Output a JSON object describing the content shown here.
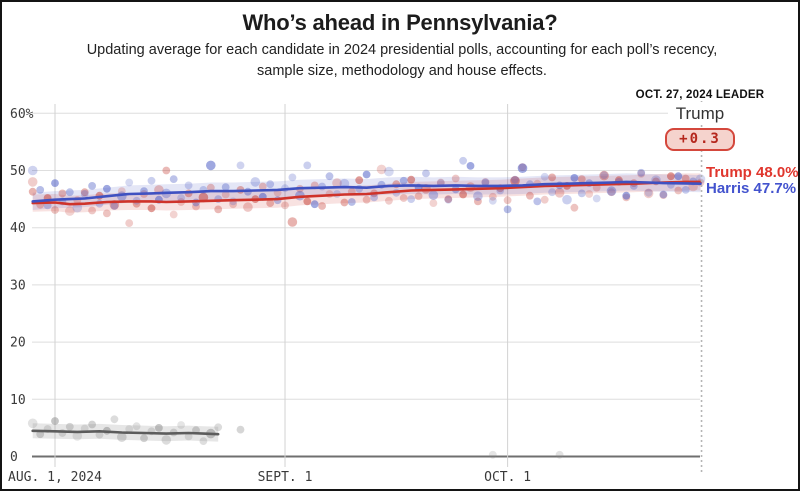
{
  "header": {
    "title": "Who’s ahead in Pennsylvania?",
    "subtitle": "Updating average for each candidate in 2024 presidential polls, accounting for each poll’s recency, sample size, methodology and house effects."
  },
  "leader": {
    "date_label": "OCT. 27, 2024 LEADER",
    "name": "Trump",
    "margin": "+0.3"
  },
  "end_labels": {
    "trump": "Trump 48.0%",
    "harris": "Harris 47.7%"
  },
  "colors": {
    "trump_line": "#cf332a",
    "trump_band": "rgba(207,51,42,0.14)",
    "trump_dot": "#c2372e",
    "trump_label": "#e0362d",
    "harris_line": "#3f51c1",
    "harris_band": "rgba(63,81,193,0.14)",
    "harris_dot": "#3f51c1",
    "harris_label": "#4353ce",
    "other_line": "#5c5c5c",
    "other_band": "rgba(140,140,140,0.22)",
    "other_dot": "#8a8a8a",
    "badge_bg": "#f5d3cd",
    "badge_border": "#d4473c",
    "badge_text": "#b5271d",
    "grid": "#dedede",
    "grid_month": "#d2d2d2",
    "axis_line": "#6f6f6f",
    "tick_text": "#3a3a3a",
    "dotted_line": "#b5b5b5"
  },
  "chart_data": {
    "type": "line",
    "title": "Who’s ahead in Pennsylvania?",
    "x_axis": {
      "ticks": [
        {
          "day": 0,
          "label": "AUG. 1, 2024"
        },
        {
          "day": 31,
          "label": "SEPT. 1"
        },
        {
          "day": 61,
          "label": "OCT. 1"
        }
      ],
      "range_days": [
        -3,
        87
      ],
      "end_marker_day": 87,
      "end_marker_date": "OCT. 27, 2024"
    },
    "y_axis": {
      "ticks": [
        {
          "value": 0,
          "label": "0"
        },
        {
          "value": 10,
          "label": "10"
        },
        {
          "value": 20,
          "label": "20"
        },
        {
          "value": 30,
          "label": "30"
        },
        {
          "value": 40,
          "label": "40"
        },
        {
          "value": 50,
          "label": "50"
        },
        {
          "value": 60,
          "label": "60%"
        }
      ],
      "range": [
        0,
        62
      ],
      "unit": "percent",
      "grid": true
    },
    "leader_annotation": {
      "date": "OCT. 27, 2024",
      "leader": "Trump",
      "margin": 0.3
    },
    "series": [
      {
        "id": "trump",
        "name": "Trump",
        "final_value": 48.0,
        "band_width": 1.5,
        "trend": [
          [
            -3,
            44.3
          ],
          [
            0,
            44.4
          ],
          [
            2,
            44.1
          ],
          [
            4,
            44.2
          ],
          [
            7,
            44.5
          ],
          [
            10,
            44.6
          ],
          [
            13,
            44.6
          ],
          [
            15,
            44.5
          ],
          [
            18,
            44.6
          ],
          [
            21,
            44.7
          ],
          [
            24,
            44.8
          ],
          [
            27,
            44.9
          ],
          [
            30,
            45.0
          ],
          [
            33,
            45.4
          ],
          [
            36,
            45.6
          ],
          [
            39,
            45.8
          ],
          [
            42,
            45.9
          ],
          [
            45,
            46.2
          ],
          [
            48,
            46.5
          ],
          [
            51,
            46.6
          ],
          [
            54,
            46.7
          ],
          [
            57,
            46.8
          ],
          [
            60,
            46.9
          ],
          [
            63,
            47.1
          ],
          [
            66,
            47.3
          ],
          [
            69,
            47.4
          ],
          [
            72,
            47.5
          ],
          [
            75,
            47.6
          ],
          [
            78,
            47.7
          ],
          [
            80,
            47.8
          ],
          [
            82,
            47.9
          ],
          [
            85,
            48.0
          ],
          [
            87,
            48.0
          ]
        ],
        "polls": [
          [
            -3,
            48.0
          ],
          [
            -3,
            46.3
          ],
          [
            -2,
            44.0
          ],
          [
            -1,
            45.2
          ],
          [
            0,
            43.1
          ],
          [
            1,
            46.0
          ],
          [
            2,
            42.9
          ],
          [
            3,
            44.8
          ],
          [
            4,
            46.2
          ],
          [
            5,
            43.0
          ],
          [
            6,
            45.6
          ],
          [
            7,
            42.5
          ],
          [
            8,
            44.0
          ],
          [
            9,
            46.4
          ],
          [
            10,
            40.8
          ],
          [
            11,
            44.2
          ],
          [
            12,
            45.9
          ],
          [
            13,
            43.4
          ],
          [
            14,
            46.6
          ],
          [
            15,
            50.0
          ],
          [
            16,
            42.3
          ],
          [
            17,
            44.5
          ],
          [
            18,
            46.0
          ],
          [
            19,
            43.7
          ],
          [
            20,
            45.3
          ],
          [
            21,
            47.0
          ],
          [
            22,
            43.2
          ],
          [
            23,
            45.8
          ],
          [
            24,
            44.1
          ],
          [
            25,
            46.6
          ],
          [
            26,
            43.6
          ],
          [
            27,
            45.0
          ],
          [
            28,
            47.2
          ],
          [
            29,
            44.3
          ],
          [
            30,
            46.1
          ],
          [
            31,
            43.9
          ],
          [
            32,
            41.0
          ],
          [
            33,
            46.8
          ],
          [
            34,
            44.6
          ],
          [
            35,
            47.4
          ],
          [
            36,
            43.8
          ],
          [
            37,
            45.9
          ],
          [
            38,
            47.8
          ],
          [
            39,
            44.4
          ],
          [
            40,
            46.3
          ],
          [
            41,
            48.3
          ],
          [
            42,
            44.9
          ],
          [
            43,
            46.0
          ],
          [
            44,
            50.2
          ],
          [
            45,
            44.7
          ],
          [
            46,
            47.6
          ],
          [
            47,
            45.2
          ],
          [
            48,
            48.4
          ],
          [
            49,
            45.5
          ],
          [
            50,
            46.8
          ],
          [
            51,
            44.3
          ],
          [
            52,
            47.9
          ],
          [
            53,
            45.0
          ],
          [
            54,
            48.6
          ],
          [
            55,
            45.8
          ],
          [
            56,
            47.1
          ],
          [
            57,
            44.6
          ],
          [
            58,
            48.0
          ],
          [
            59,
            45.4
          ],
          [
            60,
            46.9
          ],
          [
            61,
            44.8
          ],
          [
            62,
            48.2
          ],
          [
            63,
            50.6
          ],
          [
            64,
            45.6
          ],
          [
            65,
            47.7
          ],
          [
            66,
            44.9
          ],
          [
            67,
            48.8
          ],
          [
            68,
            46.1
          ],
          [
            69,
            47.3
          ],
          [
            70,
            43.5
          ],
          [
            71,
            48.5
          ],
          [
            72,
            45.9
          ],
          [
            73,
            47.0
          ],
          [
            74,
            49.1
          ],
          [
            75,
            46.2
          ],
          [
            76,
            48.3
          ],
          [
            77,
            45.3
          ],
          [
            78,
            47.8
          ],
          [
            79,
            49.4
          ],
          [
            80,
            46.0
          ],
          [
            81,
            48.1
          ],
          [
            82,
            45.7
          ],
          [
            83,
            49.0
          ],
          [
            84,
            46.5
          ],
          [
            85,
            48.6
          ],
          [
            86,
            47.2
          ],
          [
            87,
            47.9
          ]
        ]
      },
      {
        "id": "harris",
        "name": "Harris",
        "final_value": 47.7,
        "band_width": 1.5,
        "trend": [
          [
            -3,
            44.6
          ],
          [
            0,
            44.9
          ],
          [
            2,
            45.0
          ],
          [
            4,
            45.1
          ],
          [
            7,
            45.5
          ],
          [
            10,
            45.9
          ],
          [
            13,
            46.0
          ],
          [
            15,
            46.1
          ],
          [
            18,
            46.2
          ],
          [
            21,
            46.4
          ],
          [
            24,
            46.4
          ],
          [
            27,
            46.5
          ],
          [
            30,
            46.6
          ],
          [
            33,
            46.9
          ],
          [
            36,
            47.0
          ],
          [
            39,
            47.1
          ],
          [
            42,
            47.0
          ],
          [
            45,
            47.3
          ],
          [
            48,
            47.4
          ],
          [
            51,
            47.3
          ],
          [
            54,
            47.4
          ],
          [
            57,
            47.3
          ],
          [
            60,
            47.3
          ],
          [
            63,
            47.4
          ],
          [
            66,
            47.6
          ],
          [
            69,
            47.7
          ],
          [
            72,
            47.8
          ],
          [
            75,
            47.9
          ],
          [
            77,
            48.0
          ],
          [
            80,
            47.9
          ],
          [
            82,
            47.8
          ],
          [
            85,
            47.75
          ],
          [
            87,
            47.7
          ]
        ],
        "polls": [
          [
            -3,
            50.0
          ],
          [
            -2,
            46.6
          ],
          [
            -1,
            43.9
          ],
          [
            0,
            47.8
          ],
          [
            1,
            44.6
          ],
          [
            2,
            46.2
          ],
          [
            3,
            43.5
          ],
          [
            4,
            45.9
          ],
          [
            5,
            47.3
          ],
          [
            6,
            44.2
          ],
          [
            7,
            46.8
          ],
          [
            8,
            43.8
          ],
          [
            9,
            45.5
          ],
          [
            10,
            47.9
          ],
          [
            11,
            44.7
          ],
          [
            12,
            46.4
          ],
          [
            13,
            48.2
          ],
          [
            14,
            44.9
          ],
          [
            15,
            46.0
          ],
          [
            16,
            48.5
          ],
          [
            17,
            45.2
          ],
          [
            18,
            47.4
          ],
          [
            19,
            44.4
          ],
          [
            20,
            46.6
          ],
          [
            21,
            50.9
          ],
          [
            22,
            45.0
          ],
          [
            23,
            47.1
          ],
          [
            24,
            44.6
          ],
          [
            25,
            50.9
          ],
          [
            26,
            46.3
          ],
          [
            27,
            48.0
          ],
          [
            28,
            45.4
          ],
          [
            29,
            47.6
          ],
          [
            30,
            44.8
          ],
          [
            31,
            46.9
          ],
          [
            32,
            48.8
          ],
          [
            33,
            45.6
          ],
          [
            34,
            50.9
          ],
          [
            35,
            44.1
          ],
          [
            36,
            47.2
          ],
          [
            37,
            49.0
          ],
          [
            38,
            45.9
          ],
          [
            39,
            47.7
          ],
          [
            40,
            44.5
          ],
          [
            41,
            46.8
          ],
          [
            42,
            49.3
          ],
          [
            43,
            45.3
          ],
          [
            44,
            47.5
          ],
          [
            45,
            49.8
          ],
          [
            46,
            46.1
          ],
          [
            47,
            48.2
          ],
          [
            48,
            45.0
          ],
          [
            49,
            47.0
          ],
          [
            50,
            49.5
          ],
          [
            51,
            45.7
          ],
          [
            52,
            47.8
          ],
          [
            53,
            44.9
          ],
          [
            54,
            46.7
          ],
          [
            55,
            51.7
          ],
          [
            56,
            50.8
          ],
          [
            57,
            45.5
          ],
          [
            58,
            47.9
          ],
          [
            59,
            44.7
          ],
          [
            60,
            46.5
          ],
          [
            61,
            43.2
          ],
          [
            62,
            48.4
          ],
          [
            63,
            50.4
          ],
          [
            64,
            47.6
          ],
          [
            65,
            44.6
          ],
          [
            66,
            48.9
          ],
          [
            67,
            46.2
          ],
          [
            68,
            47.4
          ],
          [
            69,
            44.9
          ],
          [
            70,
            48.7
          ],
          [
            71,
            46.0
          ],
          [
            72,
            47.8
          ],
          [
            73,
            45.1
          ],
          [
            74,
            49.2
          ],
          [
            75,
            46.4
          ],
          [
            76,
            48.0
          ],
          [
            77,
            45.6
          ],
          [
            78,
            47.3
          ],
          [
            79,
            49.6
          ],
          [
            80,
            46.1
          ],
          [
            81,
            48.3
          ],
          [
            82,
            45.8
          ],
          [
            83,
            47.5
          ],
          [
            84,
            49.0
          ],
          [
            85,
            46.6
          ],
          [
            86,
            48.1
          ],
          [
            87,
            48.5
          ]
        ]
      },
      {
        "id": "other",
        "name": "",
        "band_width": 1.3,
        "trend": [
          [
            -3,
            4.5
          ],
          [
            0,
            4.4
          ],
          [
            3,
            4.3
          ],
          [
            6,
            4.4
          ],
          [
            9,
            4.2
          ],
          [
            12,
            4.1
          ],
          [
            15,
            4.0
          ],
          [
            18,
            4.1
          ],
          [
            20,
            4.0
          ],
          [
            22,
            3.9
          ]
        ],
        "polls": [
          [
            -3,
            5.8
          ],
          [
            -2,
            3.9
          ],
          [
            -1,
            4.8
          ],
          [
            0,
            6.2
          ],
          [
            1,
            4.1
          ],
          [
            2,
            5.2
          ],
          [
            3,
            3.6
          ],
          [
            4,
            4.9
          ],
          [
            5,
            5.6
          ],
          [
            6,
            3.8
          ],
          [
            7,
            4.5
          ],
          [
            8,
            6.5
          ],
          [
            9,
            3.4
          ],
          [
            10,
            4.8
          ],
          [
            11,
            5.3
          ],
          [
            12,
            3.2
          ],
          [
            13,
            4.4
          ],
          [
            14,
            5.0
          ],
          [
            15,
            2.9
          ],
          [
            16,
            4.2
          ],
          [
            17,
            5.5
          ],
          [
            18,
            3.5
          ],
          [
            19,
            4.6
          ],
          [
            20,
            2.7
          ],
          [
            21,
            4.0
          ],
          [
            22,
            5.1
          ],
          [
            25,
            4.7
          ],
          [
            59,
            0.3
          ],
          [
            68,
            0.3
          ]
        ]
      }
    ]
  }
}
